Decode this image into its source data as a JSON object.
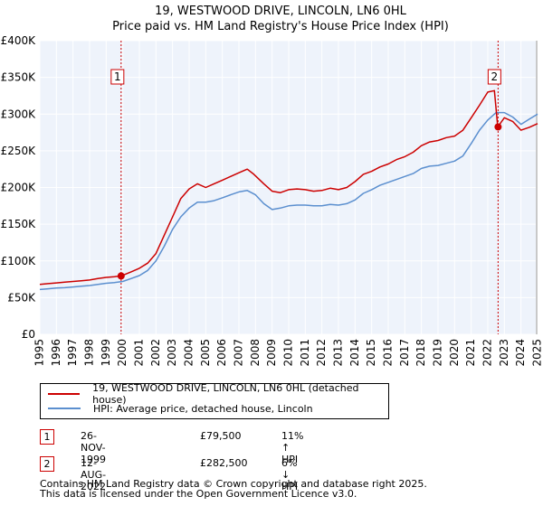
{
  "chart_data": {
    "type": "line",
    "title": "19, WESTWOOD DRIVE, LINCOLN, LN6 0HL",
    "subtitle": "Price paid vs. HM Land Registry's House Price Index (HPI)",
    "xlabel": "",
    "ylabel": "",
    "xlim": [
      1995,
      2025
    ],
    "ylim": [
      0,
      400000
    ],
    "y_ticks": [
      0,
      50000,
      100000,
      150000,
      200000,
      250000,
      300000,
      350000,
      400000
    ],
    "y_tick_labels": [
      "£0",
      "£50K",
      "£100K",
      "£150K",
      "£200K",
      "£250K",
      "£300K",
      "£350K",
      "£400K"
    ],
    "x_ticks": [
      1995,
      1996,
      1997,
      1998,
      1999,
      2000,
      2001,
      2002,
      2003,
      2004,
      2005,
      2006,
      2007,
      2008,
      2009,
      2010,
      2011,
      2012,
      2013,
      2014,
      2015,
      2016,
      2017,
      2018,
      2019,
      2020,
      2021,
      2022,
      2023,
      2024,
      2025
    ],
    "x_tick_labels": [
      "1995",
      "1996",
      "1997",
      "1998",
      "1999",
      "2000",
      "2001",
      "2002",
      "2003",
      "2004",
      "2005",
      "2006",
      "2007",
      "2008",
      "2009",
      "2010",
      "2011",
      "2012",
      "2013",
      "2014",
      "2015",
      "2016",
      "2017",
      "2018",
      "2019",
      "2020",
      "2021",
      "2022",
      "2023",
      "2024",
      "2025"
    ],
    "grid": true,
    "series": [
      {
        "name": "19, WESTWOOD DRIVE, LINCOLN, LN6 0HL (detached house)",
        "color": "#cc0000",
        "x": [
          1995.0,
          1995.5,
          1996.0,
          1996.5,
          1997.0,
          1997.5,
          1998.0,
          1998.5,
          1999.0,
          1999.5,
          1999.9,
          2000.5,
          2001.0,
          2001.5,
          2002.0,
          2002.5,
          2003.0,
          2003.5,
          2004.0,
          2004.5,
          2005.0,
          2005.5,
          2006.0,
          2006.5,
          2007.0,
          2007.5,
          2007.9,
          2008.5,
          2009.0,
          2009.5,
          2010.0,
          2010.5,
          2011.0,
          2011.5,
          2012.0,
          2012.5,
          2013.0,
          2013.5,
          2014.0,
          2014.5,
          2015.0,
          2015.5,
          2016.0,
          2016.5,
          2017.0,
          2017.5,
          2018.0,
          2018.5,
          2019.0,
          2019.5,
          2020.0,
          2020.5,
          2021.0,
          2021.5,
          2022.0,
          2022.4,
          2022.6,
          2023.0,
          2023.5,
          2024.0,
          2024.5,
          2025.0
        ],
        "values": [
          68000,
          69000,
          70000,
          71000,
          72000,
          73000,
          74000,
          76000,
          77500,
          78500,
          79500,
          85000,
          90000,
          97000,
          110000,
          135000,
          160000,
          185000,
          198000,
          205000,
          200000,
          205000,
          210000,
          215000,
          220000,
          225000,
          218000,
          205000,
          195000,
          193000,
          197000,
          198000,
          197000,
          195000,
          196000,
          199000,
          197000,
          200000,
          208000,
          218000,
          222000,
          228000,
          232000,
          238000,
          242000,
          248000,
          257000,
          262000,
          264000,
          268000,
          270000,
          278000,
          295000,
          312000,
          330000,
          332000,
          282500,
          295000,
          290000,
          278000,
          282000,
          287000
        ]
      },
      {
        "name": "HPI: Average price, detached house, Lincoln",
        "color": "#5b8fcf",
        "x": [
          1995.0,
          1995.5,
          1996.0,
          1996.5,
          1997.0,
          1997.5,
          1998.0,
          1998.5,
          1999.0,
          1999.5,
          2000.0,
          2000.5,
          2001.0,
          2001.5,
          2002.0,
          2002.5,
          2003.0,
          2003.5,
          2004.0,
          2004.5,
          2005.0,
          2005.5,
          2006.0,
          2006.5,
          2007.0,
          2007.5,
          2008.0,
          2008.5,
          2009.0,
          2009.5,
          2010.0,
          2010.5,
          2011.0,
          2011.5,
          2012.0,
          2012.5,
          2013.0,
          2013.5,
          2014.0,
          2014.5,
          2015.0,
          2015.5,
          2016.0,
          2016.5,
          2017.0,
          2017.5,
          2018.0,
          2018.5,
          2019.0,
          2019.5,
          2020.0,
          2020.5,
          2021.0,
          2021.5,
          2022.0,
          2022.5,
          2023.0,
          2023.5,
          2024.0,
          2024.5,
          2025.0
        ],
        "values": [
          61000,
          62000,
          63000,
          63500,
          64500,
          65500,
          66500,
          68000,
          69500,
          70500,
          72000,
          76000,
          80000,
          87000,
          100000,
          120000,
          143000,
          160000,
          172000,
          180000,
          180000,
          182000,
          186000,
          190000,
          194000,
          196000,
          190000,
          178000,
          170000,
          172000,
          175000,
          176000,
          176000,
          175000,
          175000,
          177000,
          176000,
          178000,
          183000,
          192000,
          197000,
          203000,
          207000,
          211000,
          215000,
          219000,
          226000,
          229000,
          230000,
          233000,
          236000,
          243000,
          260000,
          278000,
          292000,
          302000,
          302000,
          296000,
          286000,
          293000,
          300000
        ]
      }
    ],
    "annotations": [
      {
        "label": "1",
        "x": 1999.9,
        "value": 79500
      },
      {
        "label": "2",
        "x": 2022.62,
        "value": 282500
      }
    ],
    "shaded_after_x": 2025.0,
    "legend_position": "bottom-left"
  },
  "legend": {
    "property_label": "19, WESTWOOD DRIVE, LINCOLN, LN6 0HL (detached house)",
    "hpi_label": "HPI: Average price, detached house, Lincoln"
  },
  "sales": [
    {
      "num": "1",
      "date": "26-NOV-1999",
      "price": "£79,500",
      "hpi": "11% ↑ HPI"
    },
    {
      "num": "2",
      "date": "12-AUG-2022",
      "price": "£282,500",
      "hpi": "6% ↓ HPI"
    }
  ],
  "footer": {
    "line1": "Contains HM Land Registry data © Crown copyright and database right 2025.",
    "line2": "This data is licensed under the Open Government Licence v3.0."
  }
}
